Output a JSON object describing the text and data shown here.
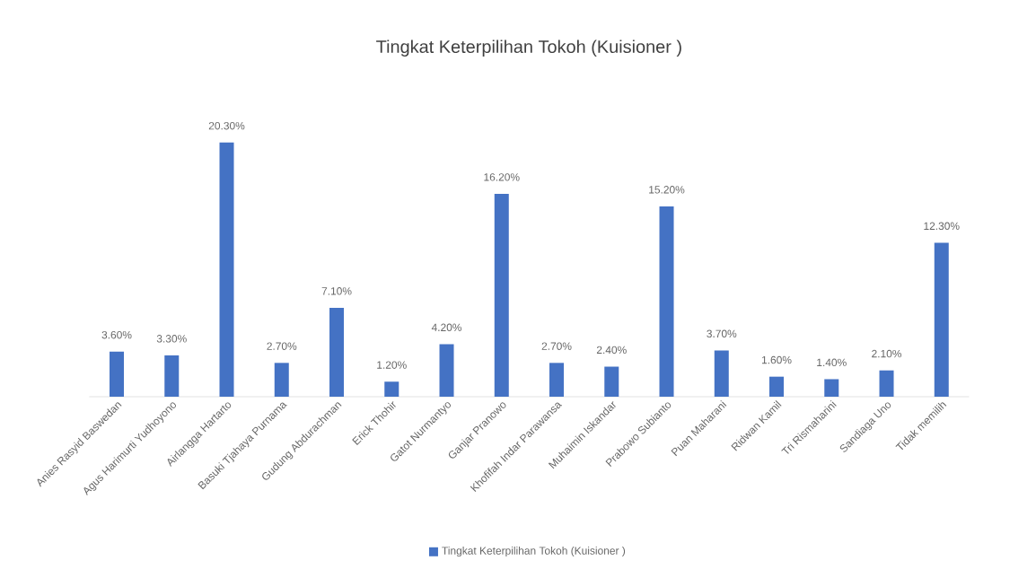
{
  "chart_data": {
    "type": "bar",
    "title": "Tingkat Keterpilihan Tokoh (Kuisioner )",
    "categories": [
      "Anies Rasyid Baswedan",
      "Agus Harimurti Yudhoyono",
      "Airlangga Hartarto",
      "Basuki Tjahaya Purnama",
      "Gudung Abdurachman",
      "Erick Thohir",
      "Gatot Nurmantyo",
      "Ganjar Pranowo",
      "Khofifah Indar Parawansa",
      "Muhaimin Iskandar",
      "Prabowo Subianto",
      "Puan Maharani",
      "Ridwan Kamil",
      "Tri Rismaharini",
      "Sandiaga Uno",
      "Tidak memilih"
    ],
    "series": [
      {
        "name": "Tingkat Keterpilihan Tokoh (Kuisioner )",
        "color": "#4472c4",
        "values": [
          3.6,
          3.3,
          20.3,
          2.7,
          7.1,
          1.2,
          4.2,
          16.2,
          2.7,
          2.4,
          15.2,
          3.7,
          1.6,
          1.4,
          2.1,
          12.3
        ],
        "value_labels": [
          "3.60%",
          "3.30%",
          "20.30%",
          "2.70%",
          "7.10%",
          "1.20%",
          "4.20%",
          "16.20%",
          "2.70%",
          "2.40%",
          "15.20%",
          "3.70%",
          "1.60%",
          "1.40%",
          "2.10%",
          "12.30%"
        ]
      }
    ],
    "legend": "bottom"
  }
}
